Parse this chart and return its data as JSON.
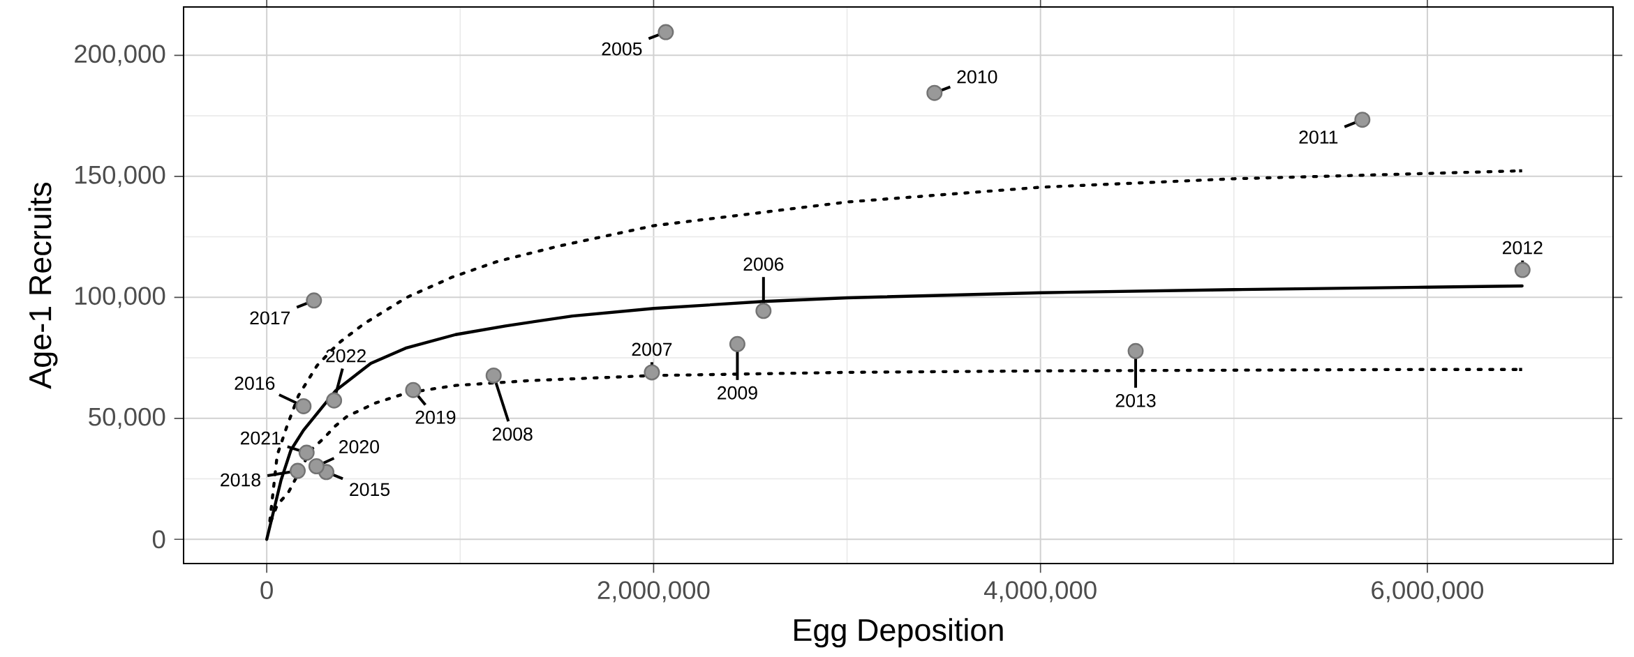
{
  "chart_data": {
    "type": "scatter",
    "xlabel": "Egg Deposition",
    "ylabel": "Age-1 Recruits",
    "xlim": [
      -430000,
      6960000
    ],
    "ylim": [
      -10000,
      220000
    ],
    "xticks": [
      0,
      {
        "value": 2000000,
        "label": "2,000,000"
      },
      {
        "value": 4000000,
        "label": "4,000,000"
      },
      {
        "value": 6000000,
        "label": "6,000,000"
      }
    ],
    "yticks": [
      0,
      {
        "value": 50000,
        "label": "50,000"
      },
      {
        "value": 100000,
        "label": "100,000"
      },
      {
        "value": 150000,
        "label": "150,000"
      },
      {
        "value": 200000,
        "label": "200,000"
      }
    ],
    "grid": true,
    "series": [
      {
        "color": "#999999",
        "x": [
          2063000,
          2568000,
          1991000,
          1173000,
          2433000,
          3452000,
          5664000,
          6492000,
          4492000,
          308000,
          190000,
          244000,
          160000,
          757000,
          257000,
          206000,
          348000
        ],
        "values": [
          209600,
          94400,
          69000,
          67700,
          80700,
          184500,
          173400,
          111300,
          77800,
          27800,
          55000,
          98700,
          28300,
          61700,
          30200,
          35800,
          57400
        ]
      },
      {
        "type": "line",
        "line_style": "solid",
        "color": "#000000",
        "x": [
          0,
          34000,
          74000,
          125000,
          190000,
          357000,
          538000,
          718000,
          976000,
          1234000,
          1580000,
          2000000,
          2568000,
          3000000,
          4000000,
          5000000,
          6000000,
          6490000
        ],
        "values": [
          0,
          11200,
          24500,
          36900,
          45100,
          61500,
          72700,
          79000,
          84600,
          88200,
          92300,
          95400,
          98300,
          99800,
          101900,
          103200,
          104200,
          104700
        ]
      },
      {
        "type": "line",
        "line_style": "dotted",
        "color": "#000000",
        "x": [
          16000,
          54000,
          106000,
          164000,
          260000,
          370000,
          505000,
          725000,
          957000,
          1195000,
          1500000,
          2000000,
          3000000,
          4000000,
          5000000,
          6000000,
          6490000
        ],
        "values": [
          7600,
          34800,
          47100,
          59400,
          71800,
          81000,
          89200,
          100000,
          108300,
          114900,
          121000,
          129600,
          139400,
          145500,
          149000,
          151200,
          152300
        ]
      },
      {
        "type": "line",
        "line_style": "dotted",
        "color": "#000000",
        "x": [
          22000,
          54000,
          112000,
          228000,
          293000,
          351000,
          415000,
          564000,
          725000,
          976000,
          1363000,
          2000000,
          3000000,
          4000000,
          6000000,
          6490000
        ],
        "values": [
          7600,
          14200,
          19400,
          36900,
          41600,
          46600,
          50800,
          56400,
          60500,
          63600,
          65600,
          67700,
          69000,
          69600,
          70200,
          70200
        ]
      }
    ],
    "annotations": [
      {
        "text": "2005",
        "x": 2063000,
        "y": 209600
      },
      {
        "text": "2006",
        "x": 2568000,
        "y": 94400
      },
      {
        "text": "2007",
        "x": 1991000,
        "y": 69000
      },
      {
        "text": "2008",
        "x": 1173000,
        "y": 67700
      },
      {
        "text": "2009",
        "x": 2433000,
        "y": 80700
      },
      {
        "text": "2010",
        "x": 3452000,
        "y": 184500
      },
      {
        "text": "2011",
        "x": 5664000,
        "y": 173400
      },
      {
        "text": "2012",
        "x": 6492000,
        "y": 111300
      },
      {
        "text": "2013",
        "x": 4492000,
        "y": 77800
      },
      {
        "text": "2015",
        "x": 308000,
        "y": 27800
      },
      {
        "text": "2016",
        "x": 190000,
        "y": 55000
      },
      {
        "text": "2017",
        "x": 244000,
        "y": 98700
      },
      {
        "text": "2018",
        "x": 160000,
        "y": 28300
      },
      {
        "text": "2019",
        "x": 757000,
        "y": 61700
      },
      {
        "text": "2020",
        "x": 257000,
        "y": 30200
      },
      {
        "text": "2021",
        "x": 206000,
        "y": 35800
      },
      {
        "text": "2022",
        "x": 348000,
        "y": 57400
      }
    ]
  }
}
